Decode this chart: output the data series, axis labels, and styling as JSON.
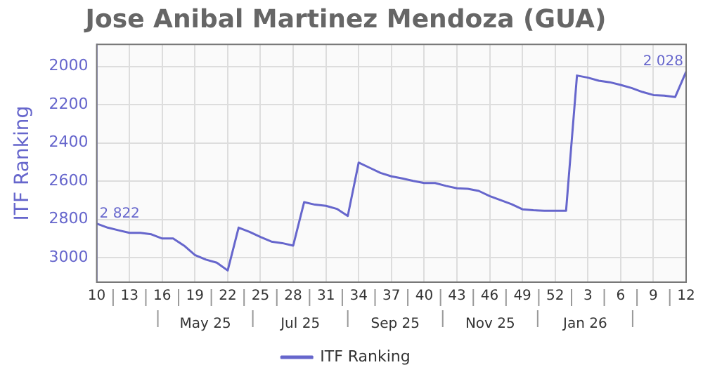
{
  "chart_data": {
    "type": "line",
    "title": "Jose Anibal Martinez Mendoza (GUA)",
    "ylabel": "ITF Ranking",
    "categories": [
      "10",
      null,
      null,
      "13",
      null,
      null,
      "16",
      null,
      null,
      "19",
      null,
      null,
      "22",
      null,
      null,
      "25",
      null,
      null,
      "28",
      null,
      null,
      "31",
      null,
      null,
      "34",
      null,
      null,
      "37",
      null,
      null,
      "40",
      null,
      null,
      "43",
      null,
      null,
      "46",
      null,
      null,
      "49",
      null,
      null,
      "52",
      null,
      null,
      "3",
      null,
      null,
      "6",
      null,
      null,
      "9",
      null,
      null,
      "12"
    ],
    "series": [
      {
        "name": "ITF Ranking",
        "color": "#6666cc",
        "values": [
          2822,
          2843,
          2857,
          2870,
          2870,
          2878,
          2900,
          2900,
          2937,
          2986,
          3010,
          3026,
          3067,
          2843,
          2865,
          2892,
          2916,
          2924,
          2937,
          2710,
          2723,
          2729,
          2745,
          2782,
          2503,
          2530,
          2557,
          2575,
          2586,
          2599,
          2610,
          2610,
          2625,
          2637,
          2640,
          2651,
          2678,
          2699,
          2720,
          2747,
          2752,
          2755,
          2755,
          2755,
          2048,
          2059,
          2075,
          2083,
          2097,
          2113,
          2134,
          2150,
          2153,
          2160,
          2028
        ],
        "value_labels": [
          "2 822",
          null,
          null,
          null,
          null,
          null,
          null,
          null,
          null,
          null,
          null,
          null,
          null,
          null,
          null,
          null,
          null,
          null,
          null,
          null,
          null,
          null,
          null,
          null,
          null,
          null,
          null,
          null,
          null,
          null,
          null,
          null,
          null,
          null,
          null,
          null,
          null,
          null,
          null,
          null,
          null,
          null,
          null,
          null,
          null,
          null,
          null,
          null,
          null,
          null,
          null,
          null,
          null,
          null,
          "2 028"
        ]
      }
    ],
    "annotations": [
      "May 25",
      "Jul 25",
      "Sep 25",
      "Nov 25",
      "Jan 26"
    ],
    "ylim": [
      3128,
      1885
    ],
    "yticks": [
      2000,
      2200,
      2400,
      2600,
      2800,
      3000
    ],
    "grid": true,
    "legend": "bottom",
    "marker": "none",
    "line_style": "solid"
  }
}
